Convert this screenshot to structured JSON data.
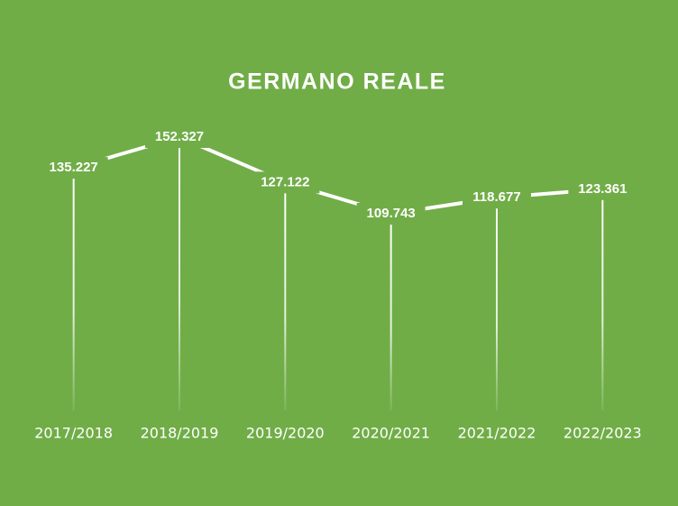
{
  "chart_data": {
    "type": "line",
    "title": "GERMANO REALE",
    "categories": [
      "2017/2018",
      "2018/2019",
      "2019/2020",
      "2020/2021",
      "2021/2022",
      "2022/2023"
    ],
    "values": [
      135227,
      152327,
      127122,
      109743,
      118677,
      123361
    ],
    "value_labels": [
      "135.227",
      "152.327",
      "127.122",
      "109.743",
      "118.677",
      "123.361"
    ],
    "color": "#ffffff"
  }
}
